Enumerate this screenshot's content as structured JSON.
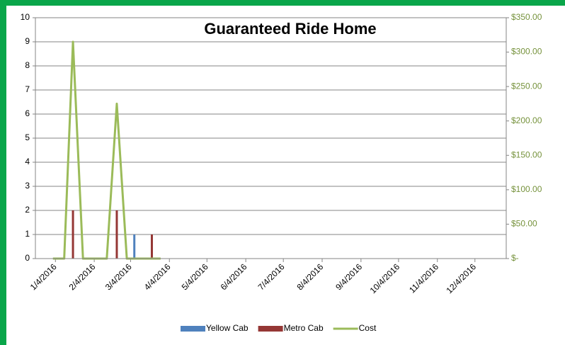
{
  "chart_data": {
    "type": "bar-line",
    "title": "Guaranteed Ride Home",
    "x": [
      "2016-01-02",
      "2016-01-11",
      "2016-01-18",
      "2016-01-26",
      "2016-02-14",
      "2016-02-22",
      "2016-03-01",
      "2016-03-07",
      "2016-03-21",
      "2016-03-28"
    ],
    "series": [
      {
        "name": "Yellow Cab",
        "type": "bar",
        "color": "#4f81bd",
        "values": [
          0,
          0,
          0,
          0,
          0,
          0,
          0,
          1,
          0,
          0
        ]
      },
      {
        "name": "Metro Cab",
        "type": "bar",
        "color": "#953735",
        "values": [
          0,
          0,
          2,
          0,
          0,
          2,
          0,
          0,
          1,
          0
        ]
      },
      {
        "name": "Cost",
        "type": "line",
        "axis": "y2",
        "color": "#9bbb59",
        "values": [
          0,
          0,
          315,
          0,
          0,
          225,
          0,
          0,
          0,
          0
        ]
      }
    ],
    "xlim": [
      "2015-12-19",
      "2016-12-29"
    ],
    "xticks": [
      {
        "value": "2016-01-04",
        "label": "1/4/2016"
      },
      {
        "value": "2016-02-04",
        "label": "2/4/2016"
      },
      {
        "value": "2016-03-04",
        "label": "3/4/2016"
      },
      {
        "value": "2016-04-04",
        "label": "4/4/2016"
      },
      {
        "value": "2016-05-04",
        "label": "5/4/2016"
      },
      {
        "value": "2016-06-04",
        "label": "6/4/2016"
      },
      {
        "value": "2016-07-04",
        "label": "7/4/2016"
      },
      {
        "value": "2016-08-04",
        "label": "8/4/2016"
      },
      {
        "value": "2016-09-04",
        "label": "9/4/2016"
      },
      {
        "value": "2016-10-04",
        "label": "10/4/2016"
      },
      {
        "value": "2016-11-04",
        "label": "11/4/2016"
      },
      {
        "value": "2016-12-04",
        "label": "12/4/2016"
      }
    ],
    "ylim": [
      0,
      10
    ],
    "yticks": [
      0,
      1,
      2,
      3,
      4,
      5,
      6,
      7,
      8,
      9,
      10
    ],
    "y2lim": [
      0,
      350
    ],
    "y2ticks": [
      {
        "value": 0,
        "label": "$-"
      },
      {
        "value": 50,
        "label": "$50.00"
      },
      {
        "value": 100,
        "label": "$100.00"
      },
      {
        "value": 150,
        "label": "$150.00"
      },
      {
        "value": 200,
        "label": "$200.00"
      },
      {
        "value": 250,
        "label": "$250.00"
      },
      {
        "value": 300,
        "label": "$300.00"
      },
      {
        "value": 350,
        "label": "$350.00"
      }
    ],
    "grid": true,
    "legend": "bottom"
  }
}
